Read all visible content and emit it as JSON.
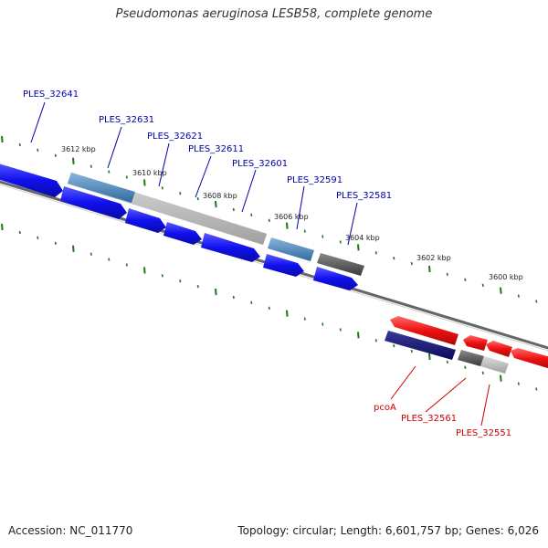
{
  "title": "Pseudomonas aeruginosa LESB58, complete genome",
  "footer": {
    "accession": "Accession: NC_011770",
    "topology": "Topology: circular; Length: 6,601,757 bp; Genes: 6,026"
  },
  "ticks": [
    "3612 kbp",
    "3610 kbp",
    "3608 kbp",
    "3606 kbp",
    "3604 kbp",
    "3602 kbp",
    "3600 kbp"
  ],
  "gene_labels_forward": [
    "PLES_32641",
    "PLES_32631",
    "PLES_32621",
    "PLES_32611",
    "PLES_32601",
    "PLES_32591",
    "PLES_32581"
  ],
  "gene_labels_reverse": [
    "pcoA",
    "PLES_32561",
    "PLES_32551"
  ],
  "colors": {
    "forward_cds": "#1010e8",
    "reverse_cds": "#e81010",
    "label_forward": "#0000aa",
    "label_reverse": "#cc0000",
    "tick_green": "#1a7a1a",
    "backbone": "#777777"
  }
}
